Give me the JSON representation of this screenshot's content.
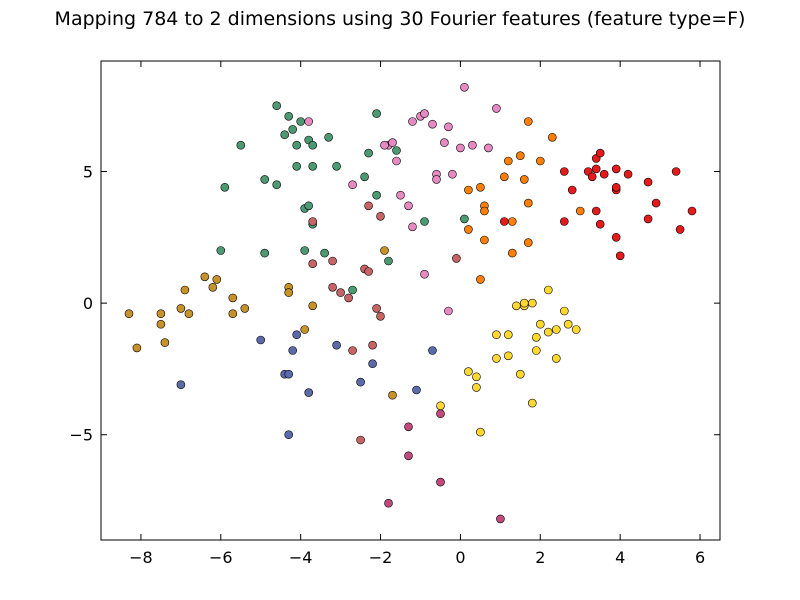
{
  "chart_data": {
    "type": "scatter",
    "title": "Mapping 784 to 2 dimensions using 30 Fourier features (feature type=F)",
    "xlabel": "",
    "ylabel": "",
    "xlim": [
      -9,
      6.5
    ],
    "ylim": [
      -9,
      9.2
    ],
    "xticks": [
      -8,
      -6,
      -4,
      -2,
      0,
      2,
      4,
      6
    ],
    "yticks": [
      -5,
      0,
      5
    ],
    "xtick_labels": [
      "−8",
      "−6",
      "−4",
      "−2",
      "0",
      "2",
      "4",
      "6"
    ],
    "ytick_labels": [
      "−5",
      "0",
      "5"
    ],
    "grid": false,
    "series": [
      {
        "color": "#e41a1c",
        "points": [
          [
            2.6,
            5.0
          ],
          [
            2.8,
            4.3
          ],
          [
            3.2,
            5.0
          ],
          [
            3.3,
            4.8
          ],
          [
            3.4,
            5.5
          ],
          [
            3.5,
            5.7
          ],
          [
            3.6,
            4.9
          ],
          [
            3.9,
            5.1
          ],
          [
            4.2,
            4.9
          ],
          [
            3.9,
            4.3
          ],
          [
            3.9,
            4.4
          ],
          [
            4.7,
            4.6
          ],
          [
            5.4,
            5.0
          ],
          [
            2.6,
            3.1
          ],
          [
            3.4,
            3.5
          ],
          [
            3.5,
            3.0
          ],
          [
            3.9,
            2.5
          ],
          [
            4.0,
            1.8
          ],
          [
            4.7,
            3.2
          ],
          [
            4.9,
            3.8
          ],
          [
            5.5,
            2.8
          ],
          [
            5.8,
            3.5
          ],
          [
            1.1,
            3.1
          ],
          [
            3.4,
            5.1
          ]
        ]
      },
      {
        "color": "#ff7f00",
        "points": [
          [
            1.7,
            6.9
          ],
          [
            2.3,
            6.3
          ],
          [
            1.5,
            5.6
          ],
          [
            1.2,
            5.4
          ],
          [
            2.0,
            5.4
          ],
          [
            1.1,
            4.8
          ],
          [
            1.6,
            4.7
          ],
          [
            0.5,
            4.4
          ],
          [
            0.2,
            4.3
          ],
          [
            1.7,
            3.8
          ],
          [
            0.6,
            3.7
          ],
          [
            0.6,
            3.5
          ],
          [
            1.3,
            3.1
          ],
          [
            0.2,
            2.8
          ],
          [
            0.6,
            2.4
          ],
          [
            1.7,
            2.3
          ],
          [
            1.3,
            1.9
          ],
          [
            0.5,
            0.9
          ],
          [
            3.0,
            3.5
          ]
        ]
      },
      {
        "color": "#e78ac3",
        "points": [
          [
            0.1,
            8.2
          ],
          [
            0.9,
            7.4
          ],
          [
            -1.2,
            6.9
          ],
          [
            -0.7,
            6.8
          ],
          [
            -1.0,
            7.1
          ],
          [
            -0.9,
            7.2
          ],
          [
            -0.3,
            6.7
          ],
          [
            -0.4,
            6.1
          ],
          [
            0.0,
            5.9
          ],
          [
            0.3,
            6.0
          ],
          [
            0.7,
            5.9
          ],
          [
            -1.8,
            6.0
          ],
          [
            -1.9,
            6.0
          ],
          [
            -1.6,
            5.4
          ],
          [
            -0.6,
            4.9
          ],
          [
            -0.6,
            4.7
          ],
          [
            -0.2,
            4.9
          ],
          [
            -2.7,
            4.5
          ],
          [
            -1.5,
            4.1
          ],
          [
            -1.3,
            3.7
          ],
          [
            -1.2,
            2.9
          ],
          [
            -3.8,
            6.9
          ],
          [
            -0.9,
            1.1
          ],
          [
            -0.3,
            -0.3
          ],
          [
            -1.7,
            6.1
          ]
        ]
      },
      {
        "color": "#4c9a72",
        "points": [
          [
            -4.6,
            7.5
          ],
          [
            -4.3,
            7.1
          ],
          [
            -4.0,
            6.9
          ],
          [
            -4.2,
            6.6
          ],
          [
            -4.4,
            6.4
          ],
          [
            -2.1,
            7.2
          ],
          [
            -3.8,
            6.2
          ],
          [
            -3.3,
            6.3
          ],
          [
            -4.1,
            6.0
          ],
          [
            -3.7,
            6.0
          ],
          [
            -5.5,
            6.0
          ],
          [
            -1.6,
            5.8
          ],
          [
            -2.3,
            5.7
          ],
          [
            -4.1,
            5.2
          ],
          [
            -3.7,
            5.2
          ],
          [
            -3.1,
            5.2
          ],
          [
            -2.4,
            4.8
          ],
          [
            -4.9,
            4.7
          ],
          [
            -4.6,
            4.5
          ],
          [
            -5.9,
            4.4
          ],
          [
            -2.1,
            4.1
          ],
          [
            -3.9,
            3.6
          ],
          [
            -3.8,
            3.7
          ],
          [
            -0.9,
            3.1
          ],
          [
            0.1,
            3.2
          ],
          [
            -3.7,
            3.0
          ],
          [
            -6.0,
            2.0
          ],
          [
            -3.9,
            2.0
          ],
          [
            -4.9,
            1.9
          ],
          [
            -3.4,
            1.9
          ],
          [
            -1.8,
            1.6
          ],
          [
            -2.7,
            0.5
          ]
        ]
      },
      {
        "color": "#c86464",
        "points": [
          [
            -2.3,
            3.7
          ],
          [
            -2.0,
            3.3
          ],
          [
            -3.7,
            3.1
          ],
          [
            -3.2,
            1.6
          ],
          [
            -3.7,
            1.5
          ],
          [
            -2.4,
            1.3
          ],
          [
            -2.3,
            1.2
          ],
          [
            -0.1,
            1.7
          ],
          [
            -3.2,
            0.6
          ],
          [
            -3.0,
            0.4
          ],
          [
            -2.8,
            0.2
          ],
          [
            -2.1,
            -0.2
          ],
          [
            -2.0,
            -0.5
          ],
          [
            -2.2,
            -1.6
          ],
          [
            -2.7,
            -1.8
          ],
          [
            -2.5,
            -5.2
          ]
        ]
      },
      {
        "color": "#c8922a",
        "points": [
          [
            -6.4,
            1.0
          ],
          [
            -6.1,
            0.9
          ],
          [
            -6.9,
            0.5
          ],
          [
            -6.2,
            0.6
          ],
          [
            -4.3,
            0.6
          ],
          [
            -4.3,
            0.4
          ],
          [
            -5.7,
            0.2
          ],
          [
            -3.7,
            -0.1
          ],
          [
            -5.4,
            -0.2
          ],
          [
            -7.0,
            -0.2
          ],
          [
            -6.8,
            -0.4
          ],
          [
            -8.3,
            -0.4
          ],
          [
            -7.5,
            -0.4
          ],
          [
            -5.7,
            -0.4
          ],
          [
            -7.5,
            -0.8
          ],
          [
            -3.9,
            -1.0
          ],
          [
            -7.4,
            -1.5
          ],
          [
            -8.1,
            -1.7
          ],
          [
            -1.9,
            2.0
          ],
          [
            -1.7,
            -3.5
          ]
        ]
      },
      {
        "color": "#5a6aaa",
        "points": [
          [
            -4.1,
            -1.2
          ],
          [
            -5.0,
            -1.4
          ],
          [
            -3.1,
            -1.6
          ],
          [
            -4.2,
            -1.8
          ],
          [
            -0.7,
            -1.8
          ],
          [
            -2.2,
            -2.3
          ],
          [
            -4.4,
            -2.7
          ],
          [
            -4.3,
            -2.7
          ],
          [
            -2.5,
            -3.0
          ],
          [
            -7.0,
            -3.1
          ],
          [
            -3.8,
            -3.4
          ],
          [
            -1.1,
            -3.3
          ],
          [
            -4.3,
            -5.0
          ]
        ]
      },
      {
        "color": "#c04a7c",
        "points": [
          [
            -0.5,
            -4.2
          ],
          [
            -1.3,
            -4.7
          ],
          [
            -1.3,
            -5.8
          ],
          [
            -0.5,
            -6.8
          ],
          [
            -1.8,
            -7.6
          ],
          [
            1.0,
            -8.2
          ]
        ]
      },
      {
        "color": "#ffd92f",
        "points": [
          [
            2.2,
            0.5
          ],
          [
            1.4,
            -0.1
          ],
          [
            1.6,
            -0.1
          ],
          [
            1.6,
            0.0
          ],
          [
            1.8,
            0.0
          ],
          [
            2.6,
            -0.3
          ],
          [
            2.0,
            -0.8
          ],
          [
            2.7,
            -0.8
          ],
          [
            2.4,
            -1.0
          ],
          [
            2.2,
            -1.1
          ],
          [
            2.9,
            -1.0
          ],
          [
            0.9,
            -1.2
          ],
          [
            1.2,
            -1.2
          ],
          [
            1.9,
            -1.3
          ],
          [
            1.9,
            -1.8
          ],
          [
            0.9,
            -2.1
          ],
          [
            1.2,
            -2.0
          ],
          [
            2.4,
            -2.1
          ],
          [
            0.2,
            -2.6
          ],
          [
            0.4,
            -2.8
          ],
          [
            1.5,
            -2.7
          ],
          [
            0.4,
            -3.2
          ],
          [
            1.8,
            -3.8
          ],
          [
            -0.5,
            -3.9
          ],
          [
            0.5,
            -4.9
          ]
        ]
      }
    ]
  }
}
